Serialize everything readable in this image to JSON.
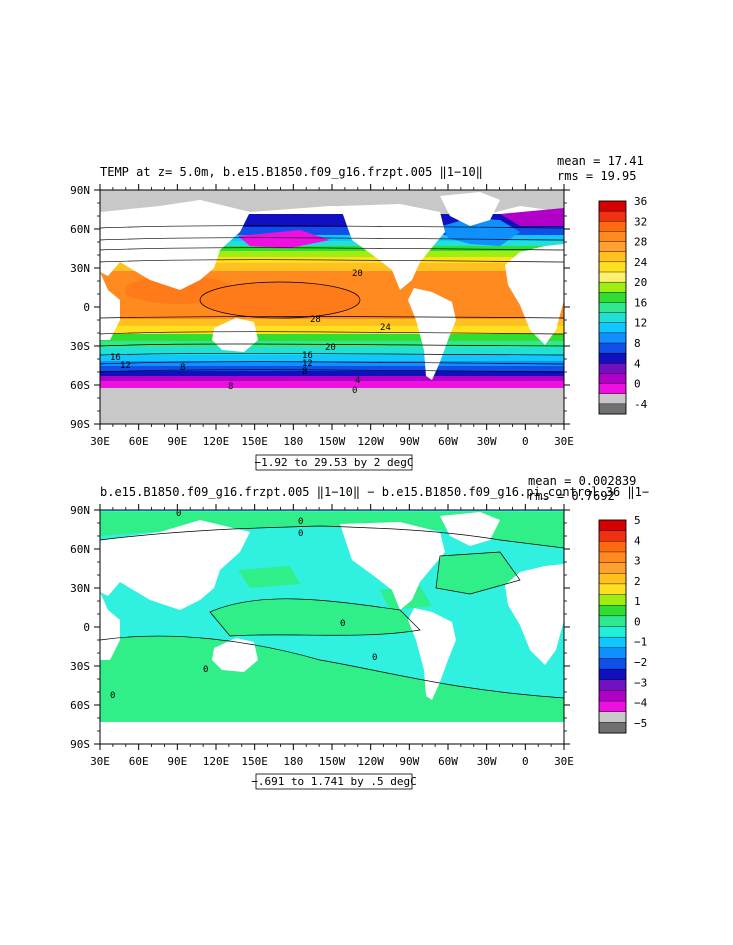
{
  "chart_data": [
    {
      "type": "heatmap",
      "title": "TEMP at z=    5.0m, b.e15.B1850.f09_g16.frzpt.005 ‖1−10‖",
      "stats": [
        "mean = 17.41",
        "rms = 19.95"
      ],
      "x_ticks": [
        "30E",
        "60E",
        "90E",
        "120E",
        "150E",
        "180",
        "150W",
        "120W",
        "90W",
        "60W",
        "30W",
        "0",
        "30E"
      ],
      "y_ticks": [
        "90N",
        "60N",
        "30N",
        "0",
        "30S",
        "60S",
        "90S"
      ],
      "colorbar_labels": [
        "36",
        "32",
        "28",
        "24",
        "20",
        "16",
        "12",
        "8",
        "4",
        "0",
        "-4"
      ],
      "colorbar_colors": [
        "#d50000",
        "#f03010",
        "#ff6a10",
        "#ff8a20",
        "#ffa030",
        "#ffc020",
        "#ffe020",
        "#fff070",
        "#a0ee10",
        "#30dd30",
        "#30e890",
        "#20e0d8",
        "#10c8ff",
        "#1090ff",
        "#1050e8",
        "#1010c0",
        "#7010c0",
        "#b000c8",
        "#ee10e0",
        "#c8c8c8",
        "#707070"
      ],
      "contour_labels": [
        "20",
        "28",
        "24",
        "20",
        "16",
        "12",
        "8",
        "16",
        "12",
        "8",
        "4",
        "0",
        "8"
      ],
      "range_note": "−1.92 to 29.53 by 2 degC"
    },
    {
      "type": "heatmap",
      "title": "b.e15.B1850.f09_g16.frzpt.005 ‖1−10‖ − b.e15.B1850.f09_g16.pi_control.36 ‖1−",
      "stats": [
        "mean = 0.002839",
        "rms = 0.7692"
      ],
      "x_ticks": [
        "30E",
        "60E",
        "90E",
        "120E",
        "150E",
        "180",
        "150W",
        "120W",
        "90W",
        "60W",
        "30W",
        "0",
        "30E"
      ],
      "y_ticks": [
        "90N",
        "60N",
        "30N",
        "0",
        "30S",
        "60S",
        "90S"
      ],
      "colorbar_labels": [
        "5",
        "4",
        "3",
        "2",
        "1",
        "0",
        "−1",
        "−2",
        "−3",
        "−4",
        "−5"
      ],
      "colorbar_colors": [
        "#d50000",
        "#f03010",
        "#ff6a10",
        "#ff8a20",
        "#ffa030",
        "#ffc020",
        "#ffe020",
        "#a0ee10",
        "#30dd30",
        "#30e890",
        "#20f0d8",
        "#10c8ff",
        "#1090ff",
        "#1050e8",
        "#1010c0",
        "#7010c0",
        "#b000c8",
        "#ee10e0",
        "#c8c8c8",
        "#707070"
      ],
      "contour_labels": [
        "0",
        "0",
        "0",
        "0",
        "0",
        "0",
        "0"
      ],
      "range_note": "−.691 to 1.741 by .5 degC"
    }
  ],
  "colors": {
    "land": "#ffffff",
    "ice": "#c8c8c8",
    "anomaly_ocean": "#30ee88",
    "anomaly_cool": "#30f0e0"
  }
}
